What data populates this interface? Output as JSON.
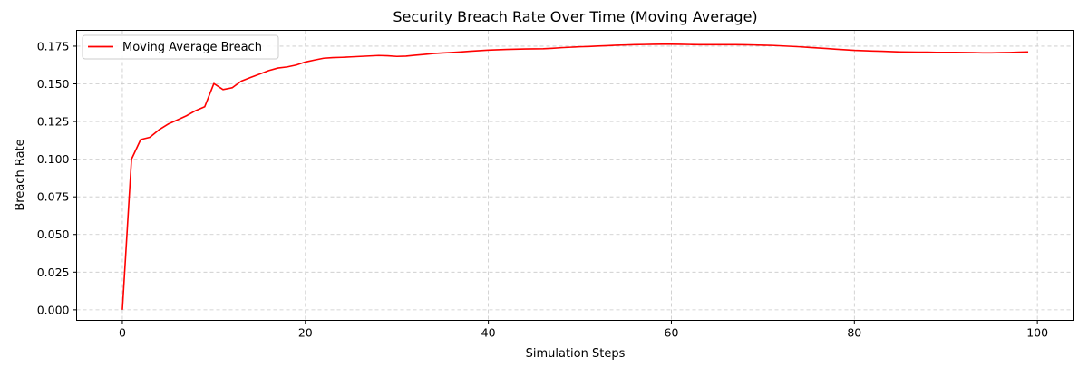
{
  "chart_data": {
    "type": "line",
    "title": "Security Breach Rate Over Time (Moving Average)",
    "xlabel": "Simulation Steps",
    "ylabel": "Breach Rate",
    "xlim": [
      -5,
      104
    ],
    "ylim": [
      -0.007,
      0.1855
    ],
    "xticks": [
      0,
      20,
      40,
      60,
      80,
      100
    ],
    "yticks": [
      0.0,
      0.025,
      0.05,
      0.075,
      0.1,
      0.125,
      0.15,
      0.175
    ],
    "xtick_labels": [
      "0",
      "20",
      "40",
      "60",
      "80",
      "100"
    ],
    "ytick_labels": [
      "0.000",
      "0.025",
      "0.050",
      "0.075",
      "0.100",
      "0.125",
      "0.150",
      "0.175"
    ],
    "grid": true,
    "legend_position": "upper-left",
    "series": [
      {
        "name": "Moving Average Breach",
        "color": "#ff0000",
        "x": [
          0,
          1,
          2,
          3,
          4,
          5,
          6,
          7,
          8,
          9,
          10,
          11,
          12,
          13,
          14,
          15,
          16,
          17,
          18,
          19,
          20,
          21,
          22,
          23,
          24,
          25,
          26,
          27,
          28,
          29,
          30,
          31,
          32,
          33,
          34,
          35,
          36,
          37,
          38,
          39,
          40,
          41,
          42,
          43,
          44,
          45,
          46,
          47,
          48,
          49,
          50,
          51,
          52,
          53,
          54,
          55,
          56,
          57,
          58,
          59,
          60,
          61,
          62,
          63,
          64,
          65,
          66,
          67,
          68,
          69,
          70,
          71,
          72,
          73,
          74,
          75,
          76,
          77,
          78,
          79,
          80,
          81,
          82,
          83,
          84,
          85,
          86,
          87,
          88,
          89,
          90,
          91,
          92,
          93,
          94,
          95,
          96,
          97,
          98,
          99
        ],
        "values": [
          0.0,
          0.1,
          0.113,
          0.1145,
          0.1195,
          0.1233,
          0.126,
          0.1288,
          0.1322,
          0.1348,
          0.1502,
          0.1462,
          0.1474,
          0.1518,
          0.1542,
          0.1565,
          0.1588,
          0.1605,
          0.1612,
          0.1625,
          0.1645,
          0.1658,
          0.167,
          0.1674,
          0.1676,
          0.1679,
          0.1682,
          0.1685,
          0.1688,
          0.1686,
          0.1682,
          0.1684,
          0.169,
          0.1695,
          0.1701,
          0.1705,
          0.1708,
          0.1712,
          0.1716,
          0.172,
          0.1724,
          0.1726,
          0.1728,
          0.173,
          0.1731,
          0.1732,
          0.1733,
          0.1736,
          0.174,
          0.1743,
          0.1746,
          0.1748,
          0.1751,
          0.1753,
          0.1756,
          0.1758,
          0.176,
          0.1761,
          0.1762,
          0.1763,
          0.1763,
          0.1762,
          0.1761,
          0.176,
          0.176,
          0.176,
          0.176,
          0.176,
          0.1759,
          0.1758,
          0.1756,
          0.1755,
          0.1752,
          0.1749,
          0.1746,
          0.1742,
          0.1738,
          0.1734,
          0.173,
          0.1726,
          0.1722,
          0.172,
          0.1718,
          0.1716,
          0.1714,
          0.1712,
          0.1711,
          0.171,
          0.171,
          0.1709,
          0.1709,
          0.1709,
          0.1708,
          0.1707,
          0.1706,
          0.1706,
          0.1707,
          0.1708,
          0.171,
          0.1712
        ]
      }
    ]
  },
  "colors": {
    "line": "#ff0000",
    "grid": "#c8c8c8",
    "axis": "#000000"
  }
}
